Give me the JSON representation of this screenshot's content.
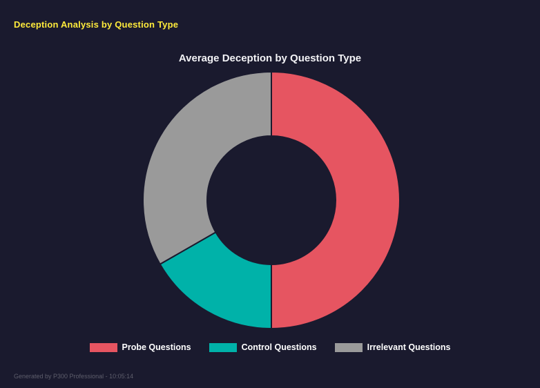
{
  "page": {
    "header_title": "Deception Analysis by Question Type",
    "header_color": "#ffeb3b",
    "background": "#1a1a2e",
    "footer_text": "Generated by P300 Professional - 10:05:14"
  },
  "chart_data": {
    "type": "pie",
    "subtype": "doughnut",
    "title": "Average Deception by Question Type",
    "labels": [
      "Probe Questions",
      "Control Questions",
      "Irrelevant Questions"
    ],
    "values": [
      50,
      16.7,
      33.3
    ],
    "colors": [
      "#e65561",
      "#00b2a9",
      "#9a9a9a"
    ],
    "legend_position": "bottom",
    "start_angle_deg": 0,
    "direction": "clockwise",
    "cutout_percent": 50,
    "outer_radius_px": 186,
    "inner_radius_px": 93,
    "border_color": "#1a1a2e",
    "border_width_px": 2
  }
}
